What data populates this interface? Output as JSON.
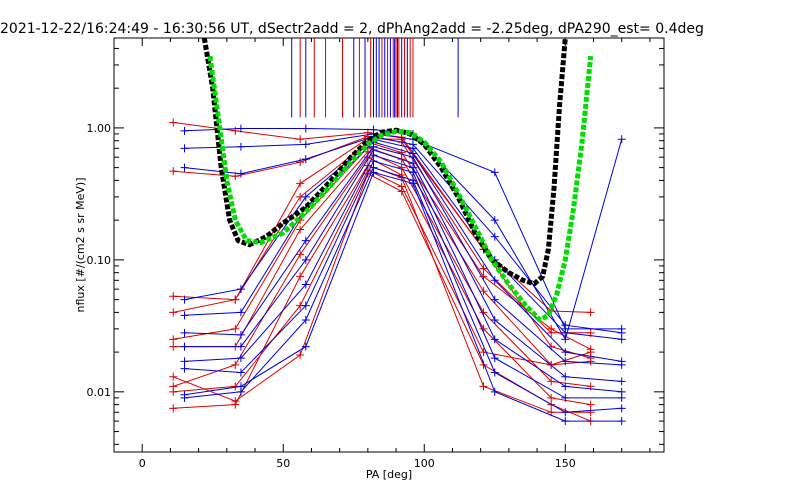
{
  "chart_data": {
    "type": "line",
    "title": "2021-12-22/16:24:49 - 16:30:56 UT, dSectr2add = 2, dPhAng2add = -2.25deg, dPA290_est=   0.4deg",
    "xlabel": "PA [deg]",
    "ylabel": "nflux [#/(cm2 s sr MeV)]",
    "xlim": [
      -10,
      185
    ],
    "ylim": [
      0.0035,
      4.8
    ],
    "yscale": "log",
    "xticks": [
      0,
      50,
      100,
      150
    ],
    "xtick_labels": [
      "0",
      "50",
      "100",
      "150"
    ],
    "yticks": [
      0.01,
      0.1,
      1.0
    ],
    "ytick_labels": [
      "0.01",
      "0.10",
      "1.00"
    ],
    "colors": {
      "red": "#dd0000",
      "blue": "#0000dd",
      "black": "#000000",
      "green": "#00dd00"
    },
    "vlines": {
      "y_range": [
        1.2,
        4.8
      ],
      "red": [
        56,
        61,
        65,
        71,
        77,
        81,
        85,
        87,
        89,
        90,
        91,
        93,
        95,
        96
      ],
      "blue": [
        53,
        58,
        75,
        79,
        82,
        83,
        84,
        86,
        88,
        89.5,
        90.5,
        92,
        94,
        112
      ]
    },
    "series": [
      {
        "color": "red",
        "x": [
          11,
          33,
          56,
          80,
          92,
          121,
          145,
          159
        ],
        "y": [
          1.1,
          0.95,
          0.82,
          0.92,
          0.85,
          0.12,
          0.022,
          0.018
        ]
      },
      {
        "color": "red",
        "x": [
          11,
          33,
          56,
          80,
          92,
          121,
          145,
          159
        ],
        "y": [
          0.47,
          0.43,
          0.55,
          0.86,
          0.78,
          0.086,
          0.028,
          0.028
        ]
      },
      {
        "color": "red",
        "x": [
          11,
          33,
          56,
          80,
          92,
          121,
          145,
          159
        ],
        "y": [
          0.053,
          0.05,
          0.38,
          0.83,
          0.82,
          0.12,
          0.041,
          0.04
        ]
      },
      {
        "color": "red",
        "x": [
          11,
          33,
          56,
          80,
          92,
          121,
          145,
          159
        ],
        "y": [
          0.04,
          0.05,
          0.3,
          0.78,
          0.65,
          0.075,
          0.03,
          0.021
        ]
      },
      {
        "color": "red",
        "x": [
          11,
          33,
          56,
          80,
          92,
          121,
          145,
          159
        ],
        "y": [
          0.025,
          0.03,
          0.2,
          0.71,
          0.58,
          0.058,
          0.016,
          0.02
        ]
      },
      {
        "color": "red",
        "x": [
          11,
          33,
          56,
          80,
          92,
          121,
          145,
          159
        ],
        "y": [
          0.022,
          0.022,
          0.17,
          0.66,
          0.5,
          0.04,
          0.012,
          0.011
        ]
      },
      {
        "color": "red",
        "x": [
          11,
          33,
          56,
          80,
          92,
          121,
          145,
          159
        ],
        "y": [
          0.011,
          0.016,
          0.11,
          0.6,
          0.44,
          0.03,
          0.009,
          0.008
        ]
      },
      {
        "color": "red",
        "x": [
          11,
          33,
          56,
          80,
          92,
          121,
          145,
          159
        ],
        "y": [
          0.0075,
          0.008,
          0.075,
          0.52,
          0.42,
          0.011,
          0.007,
          0.007
        ]
      },
      {
        "color": "red",
        "x": [
          11,
          33,
          56,
          80,
          92,
          121,
          145,
          159
        ],
        "y": [
          0.01,
          0.011,
          0.045,
          0.48,
          0.36,
          0.02,
          0.016,
          0.017
        ]
      },
      {
        "color": "red",
        "x": [
          11,
          33,
          56,
          80,
          92,
          121,
          145,
          159
        ],
        "y": [
          0.013,
          0.0085,
          0.019,
          0.45,
          0.33,
          0.016,
          0.008,
          0.006
        ]
      },
      {
        "color": "blue",
        "x": [
          15,
          35,
          58,
          82,
          96,
          125,
          150,
          170
        ],
        "y": [
          0.95,
          0.99,
          0.99,
          0.97,
          0.9,
          0.2,
          0.025,
          0.82
        ]
      },
      {
        "color": "blue",
        "x": [
          15,
          35,
          58,
          82,
          96,
          125,
          150,
          170
        ],
        "y": [
          0.7,
          0.72,
          0.75,
          0.9,
          0.82,
          0.46,
          0.03,
          0.03
        ]
      },
      {
        "color": "blue",
        "x": [
          15,
          35,
          58,
          82,
          96,
          125,
          150,
          170
        ],
        "y": [
          0.5,
          0.45,
          0.58,
          0.86,
          0.75,
          0.15,
          0.032,
          0.028
        ]
      },
      {
        "color": "blue",
        "x": [
          15,
          35,
          58,
          82,
          96,
          125,
          150,
          170
        ],
        "y": [
          0.05,
          0.06,
          0.3,
          0.82,
          0.7,
          0.1,
          0.028,
          0.025
        ]
      },
      {
        "color": "blue",
        "x": [
          15,
          35,
          58,
          82,
          96,
          125,
          150,
          170
        ],
        "y": [
          0.038,
          0.04,
          0.25,
          0.78,
          0.64,
          0.07,
          0.02,
          0.017
        ]
      },
      {
        "color": "blue",
        "x": [
          15,
          35,
          58,
          82,
          96,
          125,
          150,
          170
        ],
        "y": [
          0.028,
          0.027,
          0.14,
          0.72,
          0.6,
          0.05,
          0.017,
          0.016
        ]
      },
      {
        "color": "blue",
        "x": [
          15,
          35,
          58,
          82,
          96,
          125,
          150,
          170
        ],
        "y": [
          0.022,
          0.022,
          0.1,
          0.68,
          0.54,
          0.035,
          0.013,
          0.012
        ]
      },
      {
        "color": "blue",
        "x": [
          15,
          35,
          58,
          82,
          96,
          125,
          150,
          170
        ],
        "y": [
          0.017,
          0.018,
          0.065,
          0.62,
          0.5,
          0.025,
          0.011,
          0.01
        ]
      },
      {
        "color": "blue",
        "x": [
          15,
          35,
          58,
          82,
          96,
          125,
          150,
          170
        ],
        "y": [
          0.015,
          0.014,
          0.045,
          0.56,
          0.46,
          0.018,
          0.009,
          0.009
        ]
      },
      {
        "color": "blue",
        "x": [
          15,
          35,
          58,
          82,
          96,
          125,
          150,
          170
        ],
        "y": [
          0.009,
          0.01,
          0.035,
          0.5,
          0.4,
          0.014,
          0.007,
          0.0075
        ]
      },
      {
        "color": "blue",
        "x": [
          15,
          35,
          58,
          82,
          96,
          125,
          150,
          170
        ],
        "y": [
          0.0095,
          0.011,
          0.022,
          0.46,
          0.38,
          0.01,
          0.006,
          0.006
        ]
      }
    ],
    "fit_curves": [
      {
        "color": "black",
        "x": [
          22,
          25,
          28,
          31,
          34,
          38,
          44,
          50,
          58,
          66,
          74,
          80,
          85,
          90,
          95,
          100,
          106,
          112,
          118,
          124,
          130,
          135,
          139,
          142,
          144,
          146,
          148,
          150
        ],
        "y": [
          4.8,
          2.0,
          0.5,
          0.2,
          0.14,
          0.13,
          0.15,
          0.19,
          0.25,
          0.38,
          0.6,
          0.8,
          0.93,
          0.96,
          0.9,
          0.75,
          0.5,
          0.3,
          0.16,
          0.1,
          0.08,
          0.07,
          0.066,
          0.075,
          0.12,
          0.35,
          1.5,
          4.8
        ]
      },
      {
        "color": "green",
        "x": [
          24,
          27,
          30,
          33,
          37,
          42,
          50,
          58,
          66,
          74,
          80,
          85,
          90,
          95,
          100,
          106,
          112,
          118,
          124,
          130,
          136,
          141,
          144,
          147,
          150,
          153,
          156,
          159
        ],
        "y": [
          3.5,
          1.2,
          0.4,
          0.2,
          0.14,
          0.135,
          0.16,
          0.23,
          0.35,
          0.55,
          0.75,
          0.88,
          0.94,
          0.92,
          0.78,
          0.55,
          0.32,
          0.18,
          0.1,
          0.065,
          0.045,
          0.035,
          0.038,
          0.055,
          0.1,
          0.25,
          0.8,
          3.5
        ]
      }
    ]
  }
}
